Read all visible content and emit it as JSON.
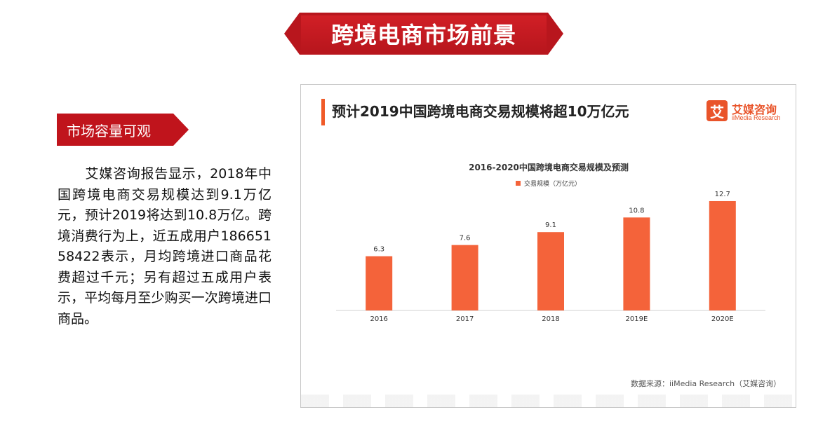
{
  "slide": {
    "title": "跨境电商市场前景",
    "section_tag": "市场容量可观",
    "body": "　　艾媒咨询报告显示，2018年中国跨境电商交易规模达到9.1万亿元，预计2019将达到10.8万亿。跨境消费行为上，近五成用户18665158422表示，月均跨境进口商品花费超过千元；另有超过五成用户表示，平均每月至少购买一次跨境进口商品。"
  },
  "panel": {
    "heading": "预计2019中国跨境电商交易规模将超10万亿元",
    "brand_icon": "艾",
    "brand_cn": "艾媒咨询",
    "brand_en": "iiMedia Research",
    "source": "数据来源：iiMedia Research（艾媒咨询）"
  },
  "colors": {
    "accent_red": "#c0141c",
    "bar": "#f4633a",
    "brand": "#e9542a"
  },
  "chart_data": {
    "type": "bar",
    "title": "2016-2020中国跨境电商交易规模及预测",
    "legend": "交易规模（万亿元）",
    "legend_position": "top",
    "categories": [
      "2016",
      "2017",
      "2018",
      "2019E",
      "2020E"
    ],
    "series": [
      {
        "name": "交易规模（万亿元）",
        "values": [
          6.3,
          7.6,
          9.1,
          10.8,
          12.7
        ]
      }
    ],
    "data_labels": [
      "6.3",
      "7.6",
      "9.1",
      "10.8",
      "12.7"
    ],
    "ylim": [
      0,
      14
    ],
    "grid": false
  }
}
